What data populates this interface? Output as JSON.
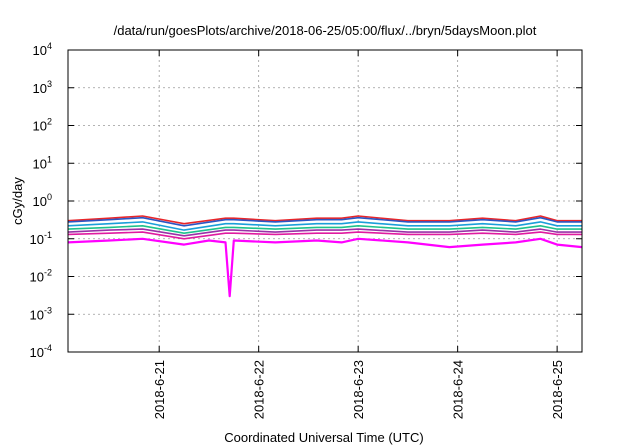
{
  "chart_data": {
    "type": "line",
    "title": "/data/run/goesPlots/archive/2018-06-25/05:00/flux/../bryn/5daysMoon.plot",
    "xlabel": "Coordinated Universal Time (UTC)",
    "ylabel": "cGy/day",
    "yscale": "log",
    "ylim": [
      0.0001,
      10000
    ],
    "yticks": [
      {
        "base": "10",
        "exp": "4"
      },
      {
        "base": "10",
        "exp": "3"
      },
      {
        "base": "10",
        "exp": "2"
      },
      {
        "base": "10",
        "exp": "1"
      },
      {
        "base": "10",
        "exp": "0"
      },
      {
        "base": "10",
        "exp": "-1"
      },
      {
        "base": "10",
        "exp": "-2"
      },
      {
        "base": "10",
        "exp": "-3"
      },
      {
        "base": "10",
        "exp": "-4"
      }
    ],
    "xlim": [
      "2018-06-20 02:00",
      "2018-06-25 06:00"
    ],
    "xticks": [
      "2018-6-21",
      "2018-6-22",
      "2018-6-23",
      "2018-6-24",
      "2018-6-25"
    ],
    "grid": true,
    "series": [
      {
        "color": "#e8262a",
        "x": [
          "2018-06-20 02:00",
          "2018-06-20 12:00",
          "2018-06-20 20:00",
          "2018-06-21 06:00",
          "2018-06-21 16:00",
          "2018-06-21 18:00",
          "2018-06-22 04:00",
          "2018-06-22 14:00",
          "2018-06-22 20:00",
          "2018-06-23 00:00",
          "2018-06-23 12:00",
          "2018-06-23 22:00",
          "2018-06-24 06:00",
          "2018-06-24 14:00",
          "2018-06-24 20:00",
          "2018-06-25 00:00",
          "2018-06-25 06:00"
        ],
        "values": [
          0.3,
          0.35,
          0.4,
          0.25,
          0.35,
          0.35,
          0.3,
          0.35,
          0.35,
          0.4,
          0.3,
          0.3,
          0.35,
          0.3,
          0.4,
          0.3,
          0.3
        ]
      },
      {
        "color": "#2b55c4",
        "x": [
          "2018-06-20 02:00",
          "2018-06-20 12:00",
          "2018-06-20 20:00",
          "2018-06-21 06:00",
          "2018-06-21 16:00",
          "2018-06-21 18:00",
          "2018-06-22 04:00",
          "2018-06-22 14:00",
          "2018-06-22 20:00",
          "2018-06-23 00:00",
          "2018-06-23 12:00",
          "2018-06-23 22:00",
          "2018-06-24 06:00",
          "2018-06-24 14:00",
          "2018-06-24 20:00",
          "2018-06-25 00:00",
          "2018-06-25 06:00"
        ],
        "values": [
          0.28,
          0.32,
          0.36,
          0.22,
          0.32,
          0.32,
          0.28,
          0.32,
          0.32,
          0.36,
          0.28,
          0.28,
          0.32,
          0.28,
          0.36,
          0.28,
          0.28
        ]
      },
      {
        "color": "#1a9fd9",
        "x": [
          "2018-06-20 02:00",
          "2018-06-20 12:00",
          "2018-06-20 20:00",
          "2018-06-21 06:00",
          "2018-06-21 16:00",
          "2018-06-21 18:00",
          "2018-06-22 04:00",
          "2018-06-22 14:00",
          "2018-06-22 20:00",
          "2018-06-23 00:00",
          "2018-06-23 12:00",
          "2018-06-23 22:00",
          "2018-06-24 06:00",
          "2018-06-24 14:00",
          "2018-06-24 20:00",
          "2018-06-25 00:00",
          "2018-06-25 06:00"
        ],
        "values": [
          0.22,
          0.25,
          0.28,
          0.17,
          0.25,
          0.25,
          0.22,
          0.25,
          0.25,
          0.28,
          0.22,
          0.22,
          0.25,
          0.22,
          0.28,
          0.22,
          0.22
        ]
      },
      {
        "color": "#1fc28c",
        "x": [
          "2018-06-20 02:00",
          "2018-06-20 12:00",
          "2018-06-20 20:00",
          "2018-06-21 06:00",
          "2018-06-21 16:00",
          "2018-06-21 18:00",
          "2018-06-22 04:00",
          "2018-06-22 14:00",
          "2018-06-22 20:00",
          "2018-06-23 00:00",
          "2018-06-23 12:00",
          "2018-06-23 22:00",
          "2018-06-24 06:00",
          "2018-06-24 14:00",
          "2018-06-24 20:00",
          "2018-06-25 00:00",
          "2018-06-25 06:00"
        ],
        "values": [
          0.18,
          0.2,
          0.22,
          0.14,
          0.2,
          0.2,
          0.18,
          0.2,
          0.2,
          0.22,
          0.18,
          0.18,
          0.2,
          0.18,
          0.22,
          0.18,
          0.18
        ]
      },
      {
        "color": "#9b30a8",
        "x": [
          "2018-06-20 02:00",
          "2018-06-20 12:00",
          "2018-06-20 20:00",
          "2018-06-21 06:00",
          "2018-06-21 16:00",
          "2018-06-21 18:00",
          "2018-06-22 04:00",
          "2018-06-22 14:00",
          "2018-06-22 20:00",
          "2018-06-23 00:00",
          "2018-06-23 12:00",
          "2018-06-23 22:00",
          "2018-06-24 06:00",
          "2018-06-24 14:00",
          "2018-06-24 20:00",
          "2018-06-25 00:00",
          "2018-06-25 06:00"
        ],
        "values": [
          0.15,
          0.17,
          0.18,
          0.12,
          0.17,
          0.17,
          0.15,
          0.17,
          0.17,
          0.18,
          0.15,
          0.15,
          0.17,
          0.15,
          0.18,
          0.15,
          0.15
        ]
      },
      {
        "color": "#e01aa0",
        "x": [
          "2018-06-20 02:00",
          "2018-06-20 12:00",
          "2018-06-20 20:00",
          "2018-06-21 06:00",
          "2018-06-21 16:00",
          "2018-06-21 18:00",
          "2018-06-22 04:00",
          "2018-06-22 14:00",
          "2018-06-22 20:00",
          "2018-06-23 00:00",
          "2018-06-23 12:00",
          "2018-06-23 22:00",
          "2018-06-24 06:00",
          "2018-06-24 14:00",
          "2018-06-24 20:00",
          "2018-06-25 00:00",
          "2018-06-25 06:00"
        ],
        "values": [
          0.13,
          0.14,
          0.15,
          0.1,
          0.14,
          0.14,
          0.13,
          0.14,
          0.14,
          0.15,
          0.13,
          0.13,
          0.14,
          0.13,
          0.15,
          0.13,
          0.13
        ]
      },
      {
        "color": "#ff00ff",
        "x": [
          "2018-06-20 02:00",
          "2018-06-20 12:00",
          "2018-06-20 20:00",
          "2018-06-21 06:00",
          "2018-06-21 12:00",
          "2018-06-21 16:00",
          "2018-06-21 17:00",
          "2018-06-21 18:00",
          "2018-06-22 04:00",
          "2018-06-22 14:00",
          "2018-06-22 20:00",
          "2018-06-23 00:00",
          "2018-06-23 12:00",
          "2018-06-23 22:00",
          "2018-06-24 06:00",
          "2018-06-24 14:00",
          "2018-06-24 20:00",
          "2018-06-25 00:00",
          "2018-06-25 06:00"
        ],
        "values": [
          0.08,
          0.09,
          0.1,
          0.07,
          0.09,
          0.08,
          0.003,
          0.09,
          0.08,
          0.09,
          0.08,
          0.1,
          0.08,
          0.06,
          0.07,
          0.08,
          0.1,
          0.07,
          0.06
        ]
      }
    ]
  }
}
